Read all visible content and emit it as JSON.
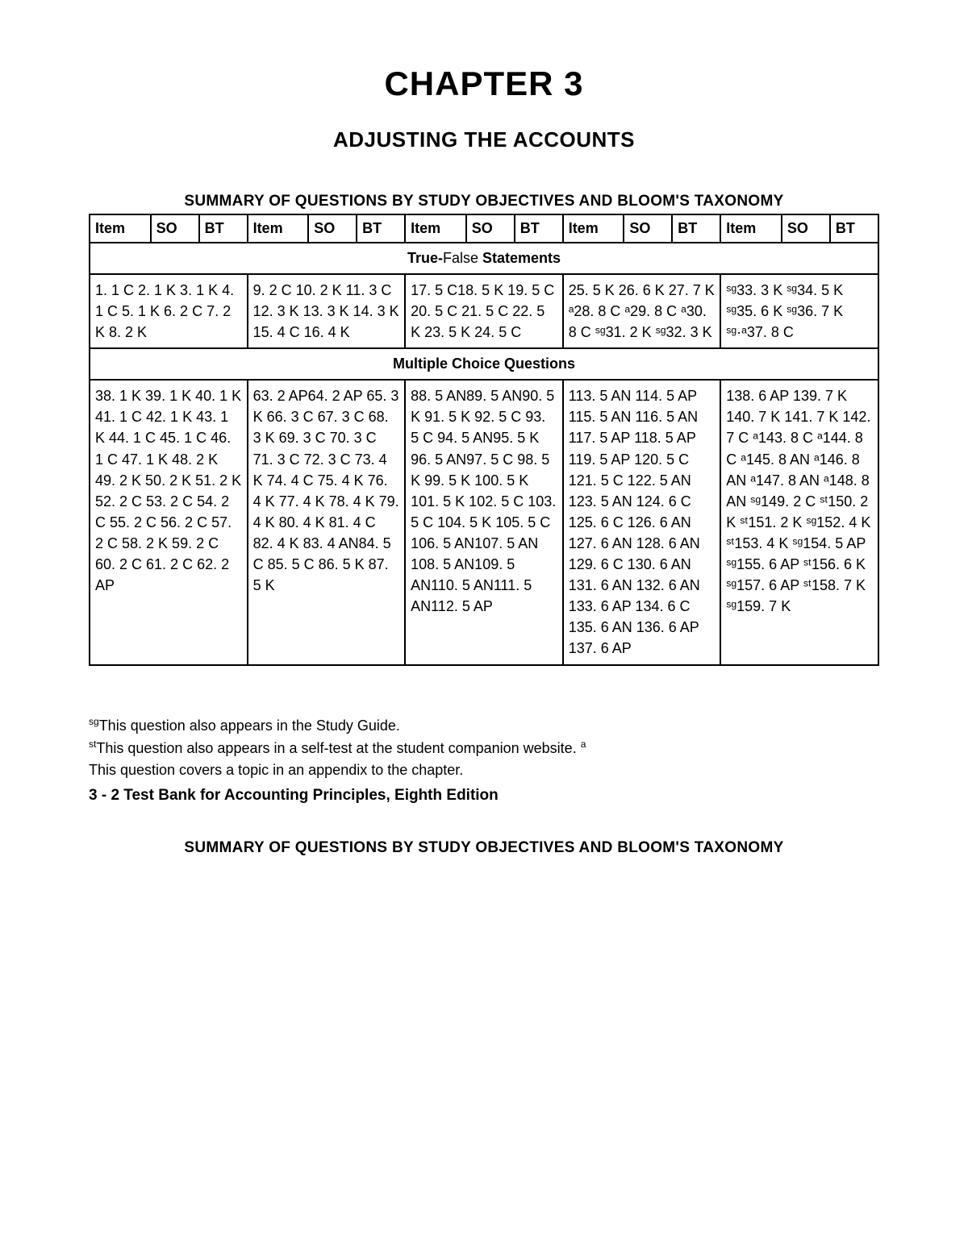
{
  "chapter_title": "CHAPTER 3",
  "subtitle": "ADJUSTING THE ACCOUNTS",
  "table_title": "SUMMARY OF QUESTIONS BY STUDY OBJECTIVES AND BLOOM'S TAXONOMY",
  "headers": [
    "Item",
    "SO",
    "BT",
    "Item",
    "SO",
    "BT",
    "Item",
    "SO",
    "BT",
    "Item",
    "SO",
    "BT",
    "Item",
    "SO",
    "BT"
  ],
  "section1_label": "True-False Statements",
  "section2_label": "Multiple Choice Questions",
  "tf_cells": [
    "1. 1 C 2. 1 K 3. 1 K 4. 1 C 5. 1 K 6. 2 C 7. 2 K 8. 2 K",
    "9. 2 C 10. 2 K 11. 3 C 12. 3 K 13. 3 K 14. 3 K 15. 4 C 16. 4 K",
    "17. 5 C18. 5 K 19. 5 C 20. 5 C 21. 5 C 22. 5 K 23. 5 K 24. 5 C",
    "25. 5 K 26. 6 K 27. 7 K ᵃ28. 8 C ᵃ29. 8 C ᵃ30. 8 C ˢᵍ31. 2 K ˢᵍ32. 3 K",
    "ˢᵍ33. 3 K ˢᵍ34. 5 K ˢᵍ35. 6 K ˢᵍ36. 7 K ˢᵍ·ᵃ37. 8 C"
  ],
  "mc_cells": [
    "38. 1 K 39. 1 K 40. 1 K 41. 1 C 42. 1 K 43. 1 K 44. 1 C 45. 1 C 46. 1 C 47. 1 K 48. 2 K 49. 2 K 50. 2 K 51. 2 K 52. 2 C 53. 2 C 54. 2 C 55. 2 C 56. 2 C 57. 2 C 58. 2 K 59. 2 C 60. 2 C 61. 2 C 62. 2 AP",
    "63. 2 AP64. 2 AP 65. 3 K 66. 3 C 67. 3 C 68. 3 K 69. 3 C 70. 3 C 71. 3 C 72. 3 C 73. 4 K 74. 4 C 75. 4 K 76. 4 K 77. 4 K 78. 4 K 79. 4 K 80. 4 K 81. 4 C 82. 4 K 83. 4 AN84. 5 C 85. 5 C 86. 5 K 87. 5 K",
    "88. 5 AN89. 5 AN90. 5 K 91. 5 K 92. 5 C 93. 5 C 94. 5 AN95. 5 K 96. 5 AN97. 5 C 98. 5 K 99. 5 K 100. 5 K 101. 5 K 102. 5 C 103. 5 C 104. 5 K 105. 5 C 106. 5 AN107. 5 AN 108. 5 AN109. 5 AN110. 5 AN111. 5 AN112. 5 AP",
    "113. 5 AN 114. 5 AP 115. 5 AN 116. 5 AN 117. 5 AP 118. 5 AP 119. 5 AP 120. 5 C 121. 5 C 122. 5 AN 123. 5 AN 124. 6 C 125. 6 C 126. 6 AN 127. 6 AN 128. 6 AN 129. 6 C 130. 6 AN 131. 6 AN 132. 6 AN 133. 6 AP 134. 6 C 135. 6 AN 136. 6 AP 137. 6 AP",
    "138. 6 AP 139. 7 K 140. 7 K 141. 7 K 142. 7 C ᵃ143. 8 C ᵃ144. 8 C ᵃ145. 8 AN ᵃ146. 8 AN ᵃ147. 8 AN ᵃ148. 8 AN ˢᵍ149. 2 C ˢᵗ150. 2 K ˢᵗ151. 2 K ˢᵍ152. 4 K ˢᵗ153. 4 K ˢᵍ154. 5 AP ˢᵍ155. 6 AP ˢᵗ156. 6 K ˢᵍ157. 6 AP ˢᵗ158. 7 K ˢᵍ159. 7 K"
  ],
  "footnotes": {
    "sg": "This question also appears in the Study Guide.",
    "st": "This question also appears in a self-test at the student companion website.",
    "a": "This question covers a topic in an appendix to the chapter."
  },
  "book_line": "3 - 2 Test Bank for Accounting Principles, Eighth Edition",
  "bottom_title": "SUMMARY OF QUESTIONS BY STUDY OBJECTIVES AND BLOOM'S TAXONOMY",
  "colors": {
    "text": "#000000",
    "background": "#ffffff",
    "border": "#000000"
  },
  "fonts": {
    "family": "Arial",
    "chapter_size": 42,
    "subtitle_size": 26,
    "table_title_size": 19,
    "cell_size": 18
  }
}
